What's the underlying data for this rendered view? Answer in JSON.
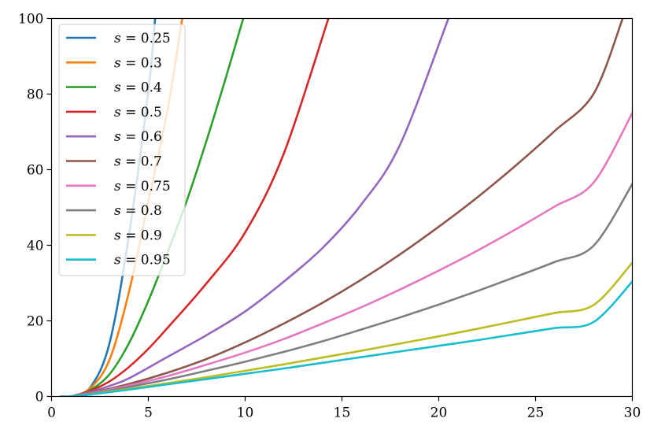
{
  "chart_data": {
    "type": "line",
    "title": "",
    "xlabel": "",
    "ylabel": "",
    "xlim": [
      0,
      30
    ],
    "ylim": [
      0,
      100
    ],
    "grid": false,
    "legend_position": "top-left",
    "x_ticks": [
      0,
      5,
      10,
      15,
      20,
      25,
      30
    ],
    "y_ticks": [
      0,
      20,
      40,
      60,
      80,
      100
    ],
    "series": [
      {
        "name": "s = 0.25",
        "label_var": "s",
        "label_value": "0.25",
        "color": "#1f77b4",
        "s": 0.25,
        "x": [
          1,
          2,
          3,
          4,
          5,
          5.35
        ],
        "y": [
          0,
          2.4,
          14.2,
          42.7,
          80.8,
          100
        ]
      },
      {
        "name": "s = 0.3",
        "label_var": "s",
        "label_value": "0.3",
        "color": "#ff7f0e",
        "s": 0.3,
        "x": [
          1,
          2,
          3,
          4,
          5,
          6,
          6.75
        ],
        "y": [
          0,
          2.2,
          9.8,
          27.7,
          51.6,
          76.1,
          100
        ]
      },
      {
        "name": "s = 0.4",
        "label_var": "s",
        "label_value": "0.4",
        "color": "#2ca02c",
        "s": 0.4,
        "x": [
          1,
          2,
          3,
          4,
          5,
          6,
          7,
          8,
          9,
          9.9
        ],
        "y": [
          0,
          1.7,
          5.9,
          14.1,
          25.3,
          38.2,
          52.0,
          67.6,
          84.3,
          100
        ]
      },
      {
        "name": "s = 0.5",
        "label_var": "s",
        "label_value": "0.5",
        "color": "#d62728",
        "s": 0.5,
        "x": [
          1,
          2,
          3,
          4,
          5,
          6,
          8,
          10,
          12,
          14.3
        ],
        "y": [
          0,
          1.5,
          4.0,
          7.8,
          12.6,
          18.2,
          29.9,
          43.4,
          64.3,
          100
        ]
      },
      {
        "name": "s = 0.6",
        "label_var": "s",
        "label_value": "0.6",
        "color": "#9467bd",
        "s": 0.6,
        "x": [
          1,
          2,
          3,
          4,
          6,
          8,
          10,
          12,
          14,
          16,
          18,
          20.5
        ],
        "y": [
          0,
          1.2,
          2.8,
          4.8,
          10.5,
          16.2,
          22.5,
          30.4,
          39.3,
          50.8,
          66.6,
          100
        ]
      },
      {
        "name": "s = 0.7",
        "label_var": "s",
        "label_value": "0.7",
        "color": "#8c564b",
        "s": 0.7,
        "x": [
          1,
          2,
          4,
          6,
          8,
          10,
          12,
          14,
          16,
          18,
          20,
          22,
          24,
          26,
          28,
          29.5
        ],
        "y": [
          0,
          0.9,
          3.3,
          6.3,
          9.9,
          14.3,
          19.3,
          24.8,
          30.9,
          37.6,
          44.9,
          52.7,
          61.2,
          70.3,
          80.1,
          100
        ]
      },
      {
        "name": "s = 0.75",
        "label_var": "s",
        "label_value": "0.75",
        "color": "#e377c2",
        "s": 0.75,
        "x": [
          1,
          2,
          4,
          6,
          8,
          10,
          12,
          14,
          16,
          18,
          20,
          22,
          24,
          26,
          28,
          30
        ],
        "y": [
          0,
          0.8,
          2.9,
          5.4,
          8.4,
          11.6,
          15.2,
          19.3,
          23.6,
          28.3,
          33.3,
          38.6,
          44.3,
          50.3,
          56.6,
          75
        ]
      },
      {
        "name": "s = 0.8",
        "label_var": "s",
        "label_value": "0.8",
        "color": "#7f7f7f",
        "s": 0.8,
        "x": [
          1,
          2,
          4,
          6,
          8,
          10,
          12,
          14,
          16,
          18,
          20,
          22,
          24,
          26,
          28,
          30
        ],
        "y": [
          0,
          0.7,
          2.5,
          4.5,
          6.8,
          9.2,
          11.8,
          14.6,
          17.7,
          20.9,
          24.3,
          27.9,
          31.7,
          35.6,
          39.9,
          56.2
        ]
      },
      {
        "name": "s = 0.9",
        "label_var": "s",
        "label_value": "0.9",
        "color": "#bcbd22",
        "s": 0.9,
        "x": [
          1,
          2,
          4,
          6,
          8,
          10,
          12,
          14,
          16,
          18,
          20,
          22,
          24,
          26,
          28,
          30
        ],
        "y": [
          0,
          0.6,
          2.0,
          3.5,
          5.1,
          6.8,
          8.5,
          10.3,
          12.1,
          14.0,
          15.9,
          17.9,
          20.0,
          22.1,
          24.2,
          35.4
        ]
      },
      {
        "name": "s = 0.95",
        "label_var": "s",
        "label_value": "0.95",
        "color": "#17becf",
        "s": 0.95,
        "x": [
          1,
          2,
          4,
          6,
          8,
          10,
          12,
          14,
          16,
          18,
          20,
          22,
          24,
          26,
          28,
          30
        ],
        "y": [
          0,
          0.5,
          1.8,
          3.2,
          4.6,
          6.0,
          7.4,
          8.9,
          10.4,
          11.9,
          13.4,
          14.9,
          16.5,
          18.1,
          19.7,
          30.4
        ]
      }
    ]
  }
}
